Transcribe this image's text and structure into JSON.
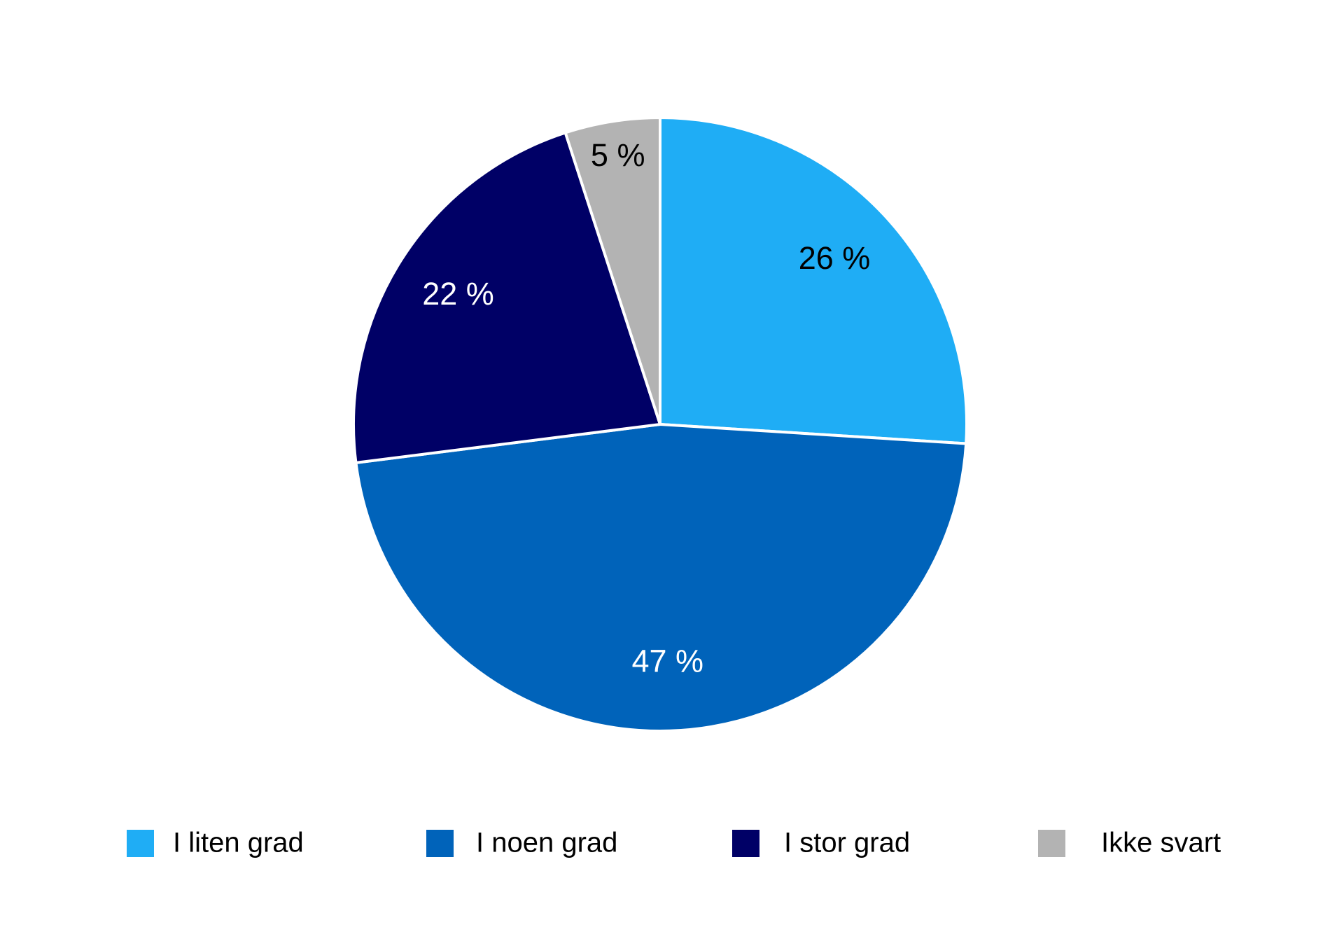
{
  "chart_data": {
    "type": "pie",
    "categories": [
      "I liten grad",
      "I noen grad",
      "I stor grad",
      "Ikke svart"
    ],
    "values": [
      26,
      47,
      22,
      5
    ],
    "value_labels": [
      "26 %",
      "47 %",
      "22 %",
      "5 %"
    ],
    "colors": [
      "#1fadf5",
      "#0063ba",
      "#000066",
      "#b3b3b3"
    ],
    "label_colors": [
      "#000000",
      "#ffffff",
      "#ffffff",
      "#000000"
    ],
    "legend": "bottom"
  }
}
